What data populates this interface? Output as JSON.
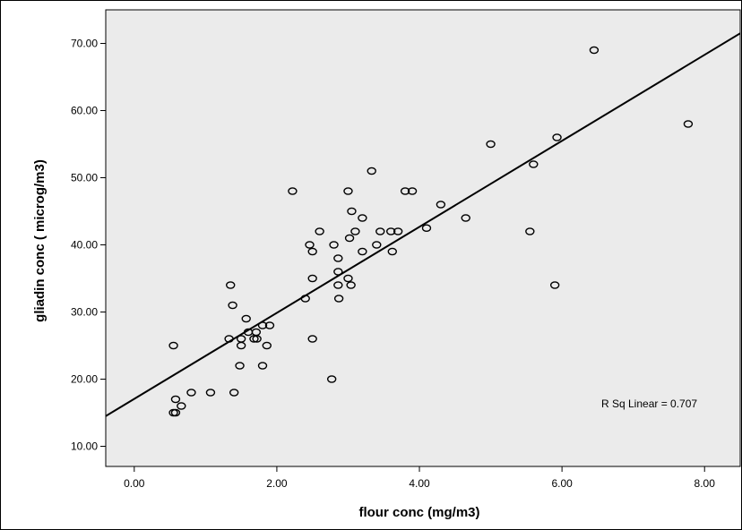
{
  "chart_data": {
    "type": "scatter",
    "title": "",
    "xlabel": "flour conc (mg/m3)",
    "ylabel": "gliadin conc ( microg/m3)",
    "xlim": [
      -0.4,
      8.5
    ],
    "ylim": [
      7.0,
      75.0
    ],
    "x_ticks": [
      0,
      2,
      4,
      6,
      8
    ],
    "y_ticks": [
      10,
      20,
      30,
      40,
      50,
      60,
      70
    ],
    "x_tick_labels": [
      "0.00",
      "2.00",
      "4.00",
      "6.00",
      "8.00"
    ],
    "y_tick_labels": [
      "10.00",
      "20.00",
      "30.00",
      "40.00",
      "50.00",
      "60.00",
      "70.00"
    ],
    "grid": false,
    "background_color": "#ebebeb",
    "marker_color": "#000000",
    "fit_line": {
      "type": "linear",
      "x_start": -0.4,
      "y_start": 14.5,
      "x_end": 8.5,
      "y_end": 71.5
    },
    "annotation": "R Sq Linear = 0.707",
    "points": [
      {
        "x": 0.55,
        "y": 25
      },
      {
        "x": 0.55,
        "y": 15
      },
      {
        "x": 0.58,
        "y": 15
      },
      {
        "x": 0.58,
        "y": 17
      },
      {
        "x": 0.66,
        "y": 16
      },
      {
        "x": 0.8,
        "y": 18
      },
      {
        "x": 1.07,
        "y": 18
      },
      {
        "x": 1.33,
        "y": 26
      },
      {
        "x": 1.35,
        "y": 34
      },
      {
        "x": 1.38,
        "y": 31
      },
      {
        "x": 1.4,
        "y": 18
      },
      {
        "x": 1.48,
        "y": 22
      },
      {
        "x": 1.5,
        "y": 25
      },
      {
        "x": 1.5,
        "y": 26
      },
      {
        "x": 1.57,
        "y": 29
      },
      {
        "x": 1.6,
        "y": 27
      },
      {
        "x": 1.68,
        "y": 26
      },
      {
        "x": 1.71,
        "y": 27
      },
      {
        "x": 1.72,
        "y": 26
      },
      {
        "x": 1.8,
        "y": 28
      },
      {
        "x": 1.8,
        "y": 22
      },
      {
        "x": 1.86,
        "y": 25
      },
      {
        "x": 1.9,
        "y": 28
      },
      {
        "x": 2.22,
        "y": 48
      },
      {
        "x": 2.4,
        "y": 32
      },
      {
        "x": 2.46,
        "y": 40
      },
      {
        "x": 2.5,
        "y": 39
      },
      {
        "x": 2.5,
        "y": 35
      },
      {
        "x": 2.5,
        "y": 26
      },
      {
        "x": 2.6,
        "y": 42
      },
      {
        "x": 2.77,
        "y": 20
      },
      {
        "x": 2.8,
        "y": 40
      },
      {
        "x": 2.86,
        "y": 38
      },
      {
        "x": 2.86,
        "y": 36
      },
      {
        "x": 2.86,
        "y": 34
      },
      {
        "x": 2.87,
        "y": 32
      },
      {
        "x": 3.0,
        "y": 48
      },
      {
        "x": 3.0,
        "y": 35
      },
      {
        "x": 3.02,
        "y": 41
      },
      {
        "x": 3.04,
        "y": 34
      },
      {
        "x": 3.05,
        "y": 45
      },
      {
        "x": 3.1,
        "y": 42
      },
      {
        "x": 3.2,
        "y": 44
      },
      {
        "x": 3.2,
        "y": 39
      },
      {
        "x": 3.33,
        "y": 51
      },
      {
        "x": 3.4,
        "y": 40
      },
      {
        "x": 3.45,
        "y": 42
      },
      {
        "x": 3.6,
        "y": 42
      },
      {
        "x": 3.62,
        "y": 39
      },
      {
        "x": 3.7,
        "y": 42
      },
      {
        "x": 3.8,
        "y": 48
      },
      {
        "x": 3.9,
        "y": 48
      },
      {
        "x": 4.1,
        "y": 42.5
      },
      {
        "x": 4.3,
        "y": 46
      },
      {
        "x": 4.65,
        "y": 44
      },
      {
        "x": 5.0,
        "y": 55
      },
      {
        "x": 5.55,
        "y": 42
      },
      {
        "x": 5.6,
        "y": 52
      },
      {
        "x": 5.9,
        "y": 34
      },
      {
        "x": 5.93,
        "y": 56
      },
      {
        "x": 6.45,
        "y": 69
      },
      {
        "x": 7.77,
        "y": 58
      }
    ]
  }
}
